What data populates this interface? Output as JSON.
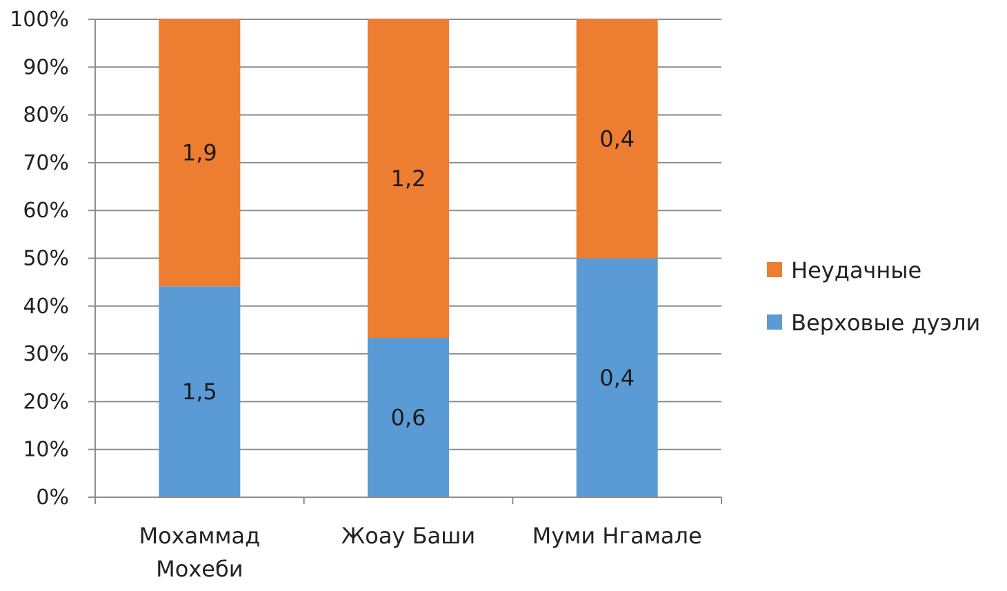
{
  "chart_data": {
    "type": "bar",
    "stacking": "percent",
    "categories": [
      [
        "Мохаммад",
        "Мохеби"
      ],
      [
        "Жоау Баши"
      ],
      [
        "Муми Нгамале"
      ]
    ],
    "series": [
      {
        "name": "Верховые дуэли",
        "values": [
          1.5,
          0.6,
          0.4
        ],
        "labels": [
          "1,5",
          "0,6",
          "0,4"
        ],
        "color": "#5b9bd5"
      },
      {
        "name": "Неудачные",
        "values": [
          1.9,
          1.2,
          0.4
        ],
        "labels": [
          "1,9",
          "1,2",
          "0,4"
        ],
        "color": "#ed7d31"
      }
    ],
    "y_ticks": [
      "0%",
      "10%",
      "20%",
      "30%",
      "40%",
      "50%",
      "60%",
      "70%",
      "80%",
      "90%",
      "100%"
    ],
    "ylim": [
      0,
      100
    ],
    "grid": true,
    "legend": {
      "position": "right",
      "entries": [
        "Неудачные",
        "Верховые дуэли"
      ]
    },
    "title": "",
    "xlabel": "",
    "ylabel": ""
  }
}
